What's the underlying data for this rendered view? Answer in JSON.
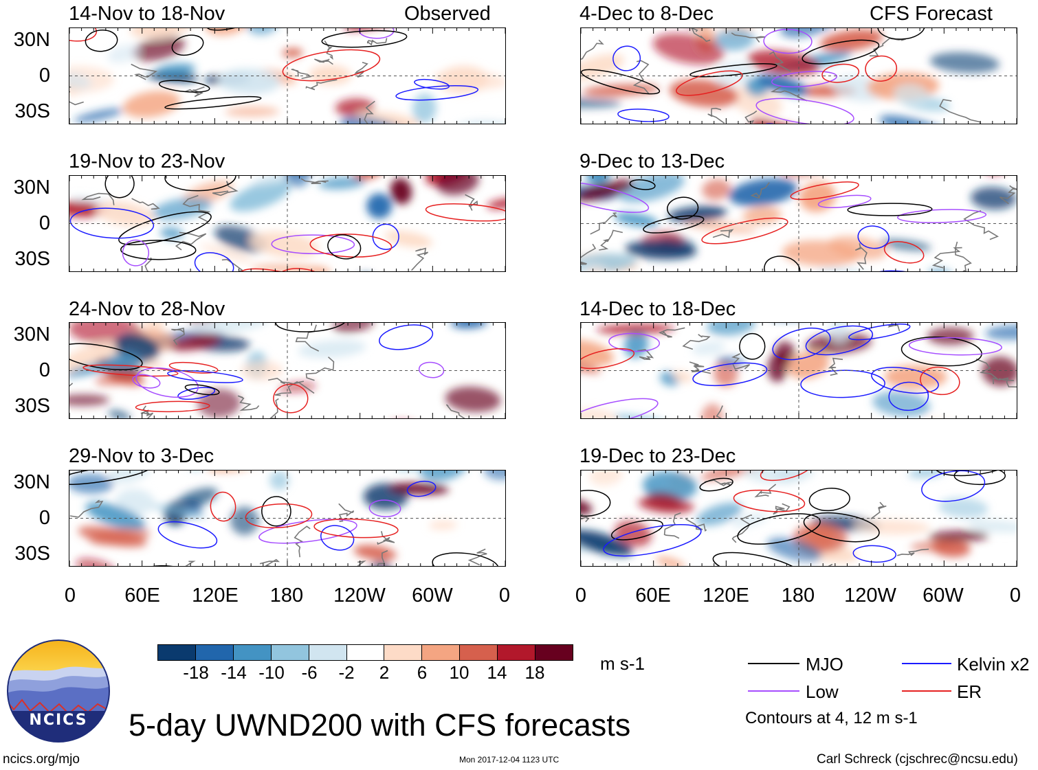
{
  "columns": {
    "left": {
      "label": "Observed"
    },
    "right": {
      "label": "CFS Forecast"
    }
  },
  "panels": {
    "left": [
      {
        "title": "14-Nov to 18-Nov"
      },
      {
        "title": "19-Nov to 23-Nov"
      },
      {
        "title": "24-Nov to 28-Nov"
      },
      {
        "title": "29-Nov to 3-Dec"
      }
    ],
    "right": [
      {
        "title": "4-Dec to 8-Dec"
      },
      {
        "title": "9-Dec to 13-Dec"
      },
      {
        "title": "14-Dec to 18-Dec"
      },
      {
        "title": "19-Dec to 23-Dec"
      }
    ]
  },
  "axes": {
    "lat_labels": [
      "30N",
      "0",
      "30S"
    ],
    "lon_labels": [
      "0",
      "60E",
      "120E",
      "180",
      "120W",
      "60W",
      "0"
    ]
  },
  "colorbar": {
    "ticks": [
      "-18",
      "-14",
      "-10",
      "-6",
      "-2",
      "2",
      "6",
      "10",
      "14",
      "18"
    ],
    "units": "m s-1",
    "colors": [
      "#0a3a6e",
      "#2166ac",
      "#4393c3",
      "#92c5de",
      "#d1e5f0",
      "#ffffff",
      "#fddbc7",
      "#f4a582",
      "#d6604d",
      "#b2182b",
      "#67001f"
    ]
  },
  "legend": {
    "items": [
      {
        "label": "MJO",
        "color": "#000000"
      },
      {
        "label": "Kelvin x2",
        "color": "#1a1aff"
      },
      {
        "label": "Low",
        "color": "#a64dff"
      },
      {
        "label": "ER",
        "color": "#e62020"
      }
    ],
    "note": "Contours at 4, 12 m s-1"
  },
  "footer": {
    "title": "5-day UWND200 with CFS forecasts",
    "url": "ncics.org/mjo",
    "timestamp": "Mon 2017-12-04 1123 UTC",
    "author": "Carl Schreck (cjschrec@ncsu.edu)",
    "logo_text": "NCICS"
  }
}
